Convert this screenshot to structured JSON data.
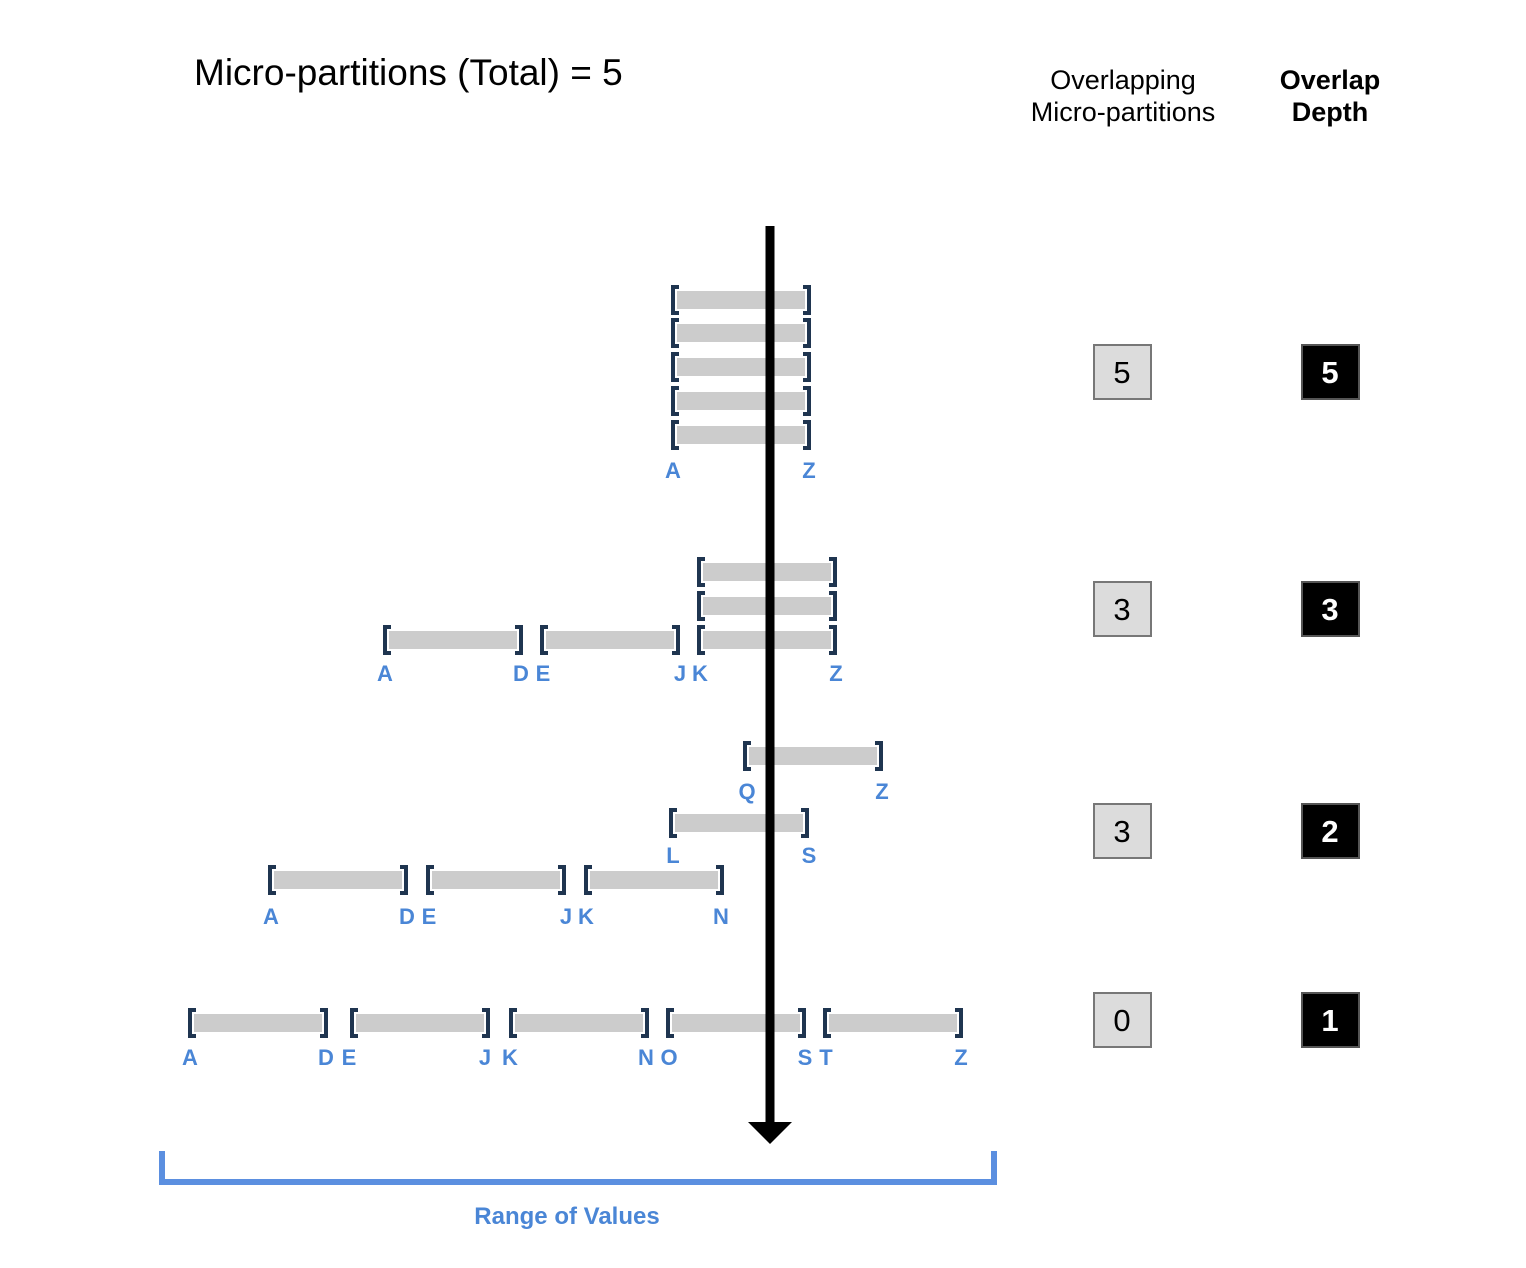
{
  "title": "Micro-partitions (Total) = 5",
  "headers": {
    "overlapping_line1": "Overlapping",
    "overlapping_line2": "Micro-partitions",
    "depth_line1": "Overlap",
    "depth_line2": "Depth"
  },
  "range_label": "Range of Values",
  "colors": {
    "bar": "#cccccc",
    "bracket": "#1f3550",
    "letter": "#4a86d6",
    "range": "#5b8fe0",
    "axis": "#000000"
  },
  "scenarios": [
    {
      "overlapping": "5",
      "depth": "5",
      "partitions": [
        {
          "start": "A",
          "end": "Z"
        },
        {
          "start": "A",
          "end": "Z"
        },
        {
          "start": "A",
          "end": "Z"
        },
        {
          "start": "A",
          "end": "Z"
        },
        {
          "start": "A",
          "end": "Z"
        }
      ],
      "labels": [
        {
          "text": "A"
        },
        {
          "text": "Z"
        }
      ]
    },
    {
      "overlapping": "3",
      "depth": "3",
      "partitions": [
        {
          "start": "K",
          "end": "Z"
        },
        {
          "start": "K",
          "end": "Z"
        },
        {
          "start": "A",
          "end": "D"
        },
        {
          "start": "E",
          "end": "J"
        },
        {
          "start": "K",
          "end": "Z"
        }
      ],
      "labels": [
        {
          "text": "A"
        },
        {
          "text": "D"
        },
        {
          "text": "E"
        },
        {
          "text": "J"
        },
        {
          "text": "K"
        },
        {
          "text": "Z"
        }
      ]
    },
    {
      "overlapping": "3",
      "depth": "2",
      "partitions": [
        {
          "start": "Q",
          "end": "Z"
        },
        {
          "start": "L",
          "end": "S"
        },
        {
          "start": "A",
          "end": "D"
        },
        {
          "start": "E",
          "end": "J"
        },
        {
          "start": "K",
          "end": "N"
        }
      ],
      "labels": [
        {
          "text": "Q"
        },
        {
          "text": "Z"
        },
        {
          "text": "L"
        },
        {
          "text": "S"
        },
        {
          "text": "A"
        },
        {
          "text": "D"
        },
        {
          "text": "E"
        },
        {
          "text": "J"
        },
        {
          "text": "K"
        },
        {
          "text": "N"
        }
      ]
    },
    {
      "overlapping": "0",
      "depth": "1",
      "partitions": [
        {
          "start": "A",
          "end": "D"
        },
        {
          "start": "E",
          "end": "J"
        },
        {
          "start": "K",
          "end": "N"
        },
        {
          "start": "O",
          "end": "S"
        },
        {
          "start": "T",
          "end": "Z"
        }
      ],
      "labels": [
        {
          "text": "A"
        },
        {
          "text": "D"
        },
        {
          "text": "E"
        },
        {
          "text": "J"
        },
        {
          "text": "K"
        },
        {
          "text": "N"
        },
        {
          "text": "O"
        },
        {
          "text": "S"
        },
        {
          "text": "T"
        },
        {
          "text": "Z"
        }
      ]
    }
  ]
}
